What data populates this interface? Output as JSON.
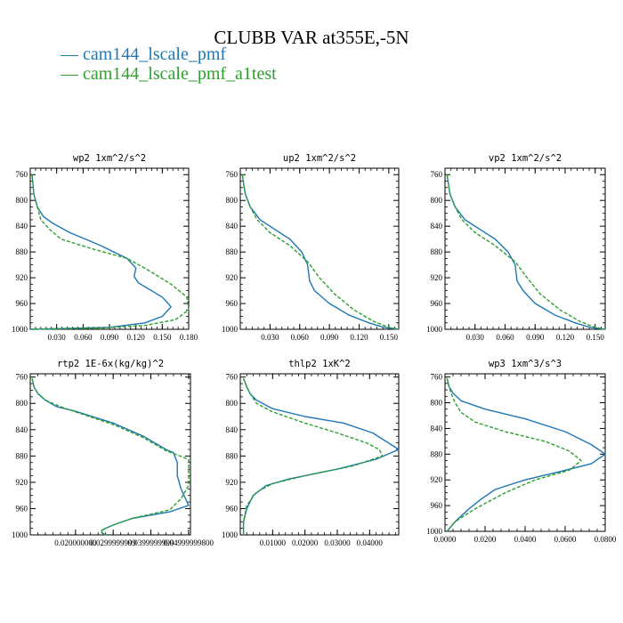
{
  "figure": {
    "title": "CLUBB VAR at355E,-5N"
  },
  "legend": [
    {
      "label": "— cam144_lscale_pmf",
      "color": "#1f77b4"
    },
    {
      "label": "— cam144_lscale_pmf_a1test",
      "color": "#2ca02c"
    }
  ],
  "chart_data": [
    {
      "type": "line",
      "title": "wp2  1xm^2/s^2",
      "xlim": [
        0.0,
        0.18
      ],
      "ylim": [
        1000,
        750
      ],
      "xticks": [
        0.03,
        0.06,
        0.09,
        0.12,
        0.15,
        0.18
      ],
      "xtick_labels": [
        "0.030",
        "0.060",
        "0.090",
        "0.120",
        "0.150",
        "0.180"
      ],
      "yticks": [
        760,
        800,
        840,
        880,
        920,
        960,
        1000
      ],
      "series": [
        {
          "name": "cam144_lscale_pmf",
          "color": "#1f77b4",
          "dash": "",
          "x": [
            0.002,
            0.004,
            0.008,
            0.015,
            0.025,
            0.045,
            0.08,
            0.11,
            0.12,
            0.118,
            0.123,
            0.15,
            0.16,
            0.15,
            0.13,
            0.09,
            0.0
          ],
          "y": [
            760,
            790,
            810,
            825,
            835,
            850,
            870,
            890,
            905,
            918,
            928,
            950,
            965,
            980,
            990,
            997,
            1000
          ]
        },
        {
          "name": "cam144_lscale_pmf_a1test",
          "color": "#2ca02c",
          "dash": "4,2",
          "x": [
            0.002,
            0.004,
            0.008,
            0.012,
            0.022,
            0.035,
            0.07,
            0.11,
            0.13,
            0.16,
            0.178,
            0.18,
            0.165,
            0.13,
            0.08,
            0.0
          ],
          "y": [
            760,
            790,
            810,
            830,
            845,
            860,
            875,
            890,
            905,
            930,
            950,
            970,
            985,
            994,
            998,
            1000
          ]
        }
      ]
    },
    {
      "type": "line",
      "title": "up2  1xm^2/s^2",
      "xlim": [
        0.0,
        0.16
      ],
      "ylim": [
        1000,
        750
      ],
      "xticks": [
        0.03,
        0.06,
        0.09,
        0.12,
        0.15
      ],
      "xtick_labels": [
        "0.030",
        "0.060",
        "0.090",
        "0.120",
        "0.150"
      ],
      "yticks": [
        760,
        800,
        840,
        880,
        920,
        960,
        1000
      ],
      "series": [
        {
          "name": "cam144_lscale_pmf",
          "color": "#1f77b4",
          "dash": "",
          "x": [
            0.002,
            0.005,
            0.01,
            0.02,
            0.035,
            0.05,
            0.062,
            0.068,
            0.07,
            0.075,
            0.09,
            0.11,
            0.13,
            0.145,
            0.16
          ],
          "y": [
            760,
            790,
            810,
            830,
            845,
            860,
            880,
            900,
            925,
            940,
            960,
            978,
            990,
            997,
            1000
          ]
        },
        {
          "name": "cam144_lscale_pmf_a1test",
          "color": "#2ca02c",
          "dash": "4,2",
          "x": [
            0.002,
            0.005,
            0.01,
            0.017,
            0.03,
            0.05,
            0.068,
            0.08,
            0.095,
            0.115,
            0.135,
            0.15,
            0.16
          ],
          "y": [
            760,
            790,
            810,
            830,
            850,
            870,
            895,
            920,
            945,
            970,
            988,
            997,
            1000
          ]
        }
      ]
    },
    {
      "type": "line",
      "title": "vp2  1xm^2/s^2",
      "xlim": [
        0.0,
        0.16
      ],
      "ylim": [
        1000,
        750
      ],
      "xticks": [
        0.03,
        0.06,
        0.09,
        0.12,
        0.15
      ],
      "xtick_labels": [
        "0.030",
        "0.060",
        "0.090",
        "0.120",
        "0.150"
      ],
      "yticks": [
        760,
        800,
        840,
        880,
        920,
        960,
        1000
      ],
      "series": [
        {
          "name": "cam144_lscale_pmf",
          "color": "#1f77b4",
          "dash": "",
          "x": [
            0.002,
            0.005,
            0.01,
            0.02,
            0.035,
            0.05,
            0.063,
            0.07,
            0.072,
            0.078,
            0.09,
            0.11,
            0.13,
            0.145,
            0.16
          ],
          "y": [
            760,
            790,
            810,
            830,
            845,
            860,
            880,
            900,
            925,
            940,
            960,
            978,
            990,
            997,
            1000
          ]
        },
        {
          "name": "cam144_lscale_pmf_a1test",
          "color": "#2ca02c",
          "dash": "4,2",
          "x": [
            0.002,
            0.005,
            0.01,
            0.017,
            0.03,
            0.05,
            0.07,
            0.082,
            0.095,
            0.115,
            0.135,
            0.15,
            0.16
          ],
          "y": [
            760,
            790,
            810,
            830,
            850,
            870,
            895,
            920,
            945,
            970,
            988,
            997,
            1000
          ]
        }
      ]
    },
    {
      "type": "line",
      "title": "rtp2  1E-6x(kg/kg)^2",
      "xlim": [
        0.008,
        0.0505
      ],
      "ylim": [
        1000,
        755
      ],
      "xticks": [
        0.02,
        0.03,
        0.04,
        0.05
      ],
      "xtick_labels": [
        "0.020000000",
        "0.0299999999",
        "0.0399999999",
        "0.04999999800"
      ],
      "yticks": [
        760,
        800,
        840,
        880,
        920,
        960,
        1000
      ],
      "series": [
        {
          "name": "cam144_lscale_pmf",
          "color": "#1f77b4",
          "dash": "",
          "x": [
            0.0085,
            0.009,
            0.01,
            0.012,
            0.015,
            0.02,
            0.03,
            0.038,
            0.044,
            0.046,
            0.047,
            0.047,
            0.048,
            0.05,
            0.045,
            0.035,
            0.03,
            0.028,
            0.027,
            0.027,
            0.028
          ],
          "y": [
            762,
            775,
            785,
            795,
            805,
            812,
            830,
            850,
            870,
            875,
            890,
            910,
            930,
            955,
            965,
            975,
            985,
            990,
            993,
            997,
            1000
          ]
        },
        {
          "name": "cam144_lscale_pmf_a1test",
          "color": "#2ca02c",
          "dash": "4,2",
          "x": [
            0.0085,
            0.009,
            0.01,
            0.012,
            0.016,
            0.021,
            0.03,
            0.038,
            0.044,
            0.05,
            0.05,
            0.05,
            0.048,
            0.045,
            0.035,
            0.03,
            0.028,
            0.027,
            0.027,
            0.028
          ],
          "y": [
            762,
            775,
            785,
            795,
            805,
            815,
            832,
            852,
            872,
            885,
            905,
            925,
            945,
            962,
            975,
            985,
            990,
            993,
            997,
            1000
          ]
        }
      ]
    },
    {
      "type": "line",
      "title": "thlp2  1xK^2",
      "xlim": [
        0.0,
        0.049
      ],
      "ylim": [
        1000,
        755
      ],
      "xticks": [
        0.01,
        0.02,
        0.03,
        0.04
      ],
      "xtick_labels": [
        "0.01000",
        "0.02000",
        "0.03000",
        "0.04000"
      ],
      "yticks": [
        760,
        800,
        840,
        880,
        920,
        960,
        1000
      ],
      "series": [
        {
          "name": "cam144_lscale_pmf",
          "color": "#1f77b4",
          "dash": "",
          "x": [
            0.001,
            0.002,
            0.003,
            0.005,
            0.01,
            0.02,
            0.032,
            0.041,
            0.049,
            0.042,
            0.03,
            0.015,
            0.008,
            0.004,
            0.002,
            0.001,
            0.001
          ],
          "y": [
            762,
            775,
            785,
            795,
            808,
            820,
            830,
            845,
            870,
            885,
            900,
            915,
            925,
            940,
            960,
            980,
            1000
          ]
        },
        {
          "name": "cam144_lscale_pmf_a1test",
          "color": "#2ca02c",
          "dash": "4,2",
          "x": [
            0.001,
            0.002,
            0.003,
            0.005,
            0.01,
            0.02,
            0.03,
            0.039,
            0.043,
            0.044,
            0.035,
            0.02,
            0.01,
            0.005,
            0.002,
            0.001,
            0.001
          ],
          "y": [
            762,
            775,
            785,
            800,
            813,
            830,
            845,
            860,
            870,
            880,
            895,
            910,
            922,
            935,
            955,
            980,
            1000
          ]
        }
      ]
    },
    {
      "type": "line",
      "title": "wp3  1xm^3/s^3",
      "xlim": [
        0.0,
        0.08
      ],
      "ylim": [
        1000,
        755
      ],
      "xticks": [
        0.0,
        0.02,
        0.04,
        0.06,
        0.08
      ],
      "xtick_labels": [
        "0.0000",
        "0.0200",
        "0.0400",
        "0.0600",
        "0.0800"
      ],
      "yticks": [
        760,
        800,
        840,
        880,
        920,
        960,
        1000
      ],
      "series": [
        {
          "name": "cam144_lscale_pmf",
          "color": "#1f77b4",
          "dash": "",
          "x": [
            0.001,
            0.002,
            0.004,
            0.008,
            0.02,
            0.04,
            0.06,
            0.073,
            0.08,
            0.073,
            0.06,
            0.04,
            0.025,
            0.018,
            0.012,
            0.005,
            0.001
          ],
          "y": [
            762,
            775,
            785,
            797,
            810,
            825,
            845,
            865,
            880,
            895,
            905,
            920,
            935,
            950,
            965,
            985,
            1000
          ]
        },
        {
          "name": "cam144_lscale_pmf_a1test",
          "color": "#2ca02c",
          "dash": "4,2",
          "x": [
            0.001,
            0.002,
            0.003,
            0.005,
            0.008,
            0.015,
            0.03,
            0.05,
            0.062,
            0.068,
            0.062,
            0.045,
            0.03,
            0.015,
            0.005,
            0.001
          ],
          "y": [
            762,
            775,
            785,
            800,
            815,
            830,
            845,
            860,
            875,
            890,
            905,
            920,
            940,
            965,
            985,
            1000
          ]
        }
      ]
    }
  ]
}
